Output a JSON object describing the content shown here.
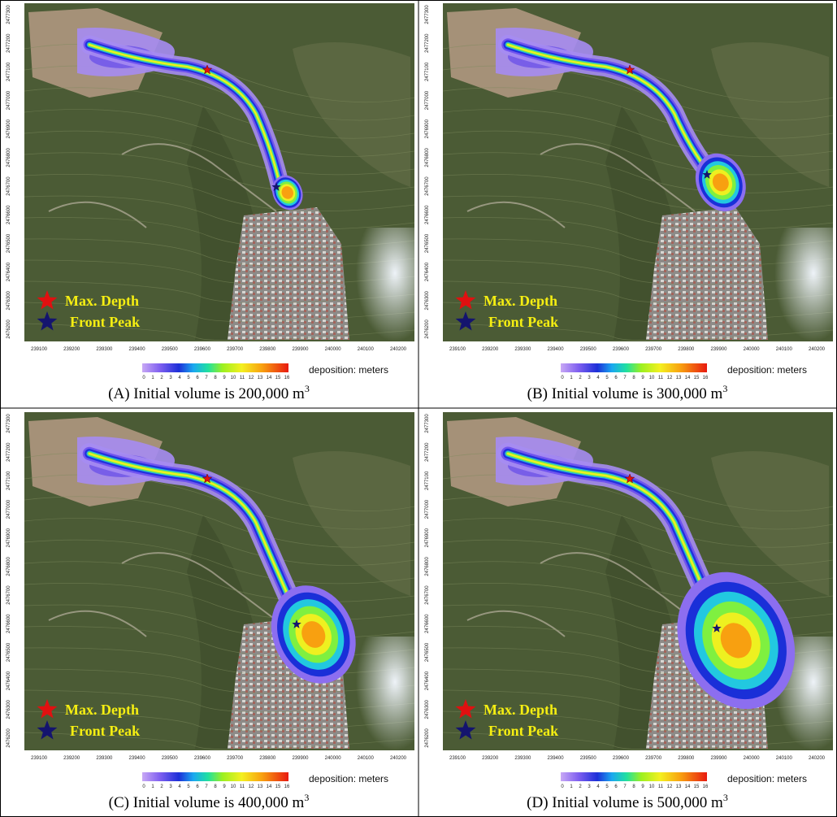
{
  "panels": [
    {
      "caption": {
        "text": "(A) Initial volume is 200,000 m",
        "superscript": "3"
      }
    },
    {
      "caption": {
        "text": "(B) Initial volume is 300,000 m",
        "superscript": "3"
      }
    },
    {
      "caption": {
        "text": "(C) Initial volume is 400,000 m",
        "superscript": "3"
      }
    },
    {
      "caption": {
        "text": "(D) Initial volume is 500,000 m",
        "superscript": "3"
      }
    }
  ],
  "map_axes": {
    "x_ticks": [
      239100,
      239200,
      239300,
      239400,
      239500,
      239600,
      239700,
      239800,
      239900,
      240000,
      240100,
      240200
    ],
    "y_ticks": [
      2477300,
      2477200,
      2477100,
      2477000,
      2476900,
      2476800,
      2476700,
      2476600,
      2476500,
      2476400,
      2476300,
      2476200
    ]
  },
  "legend": [
    "Max. Depth",
    "Front Peak"
  ],
  "colorbar": {
    "ticks": [
      0,
      1,
      2,
      3,
      4,
      5,
      6,
      7,
      8,
      9,
      10,
      11,
      12,
      13,
      14,
      15,
      16
    ],
    "label": "deposition: meters"
  }
}
